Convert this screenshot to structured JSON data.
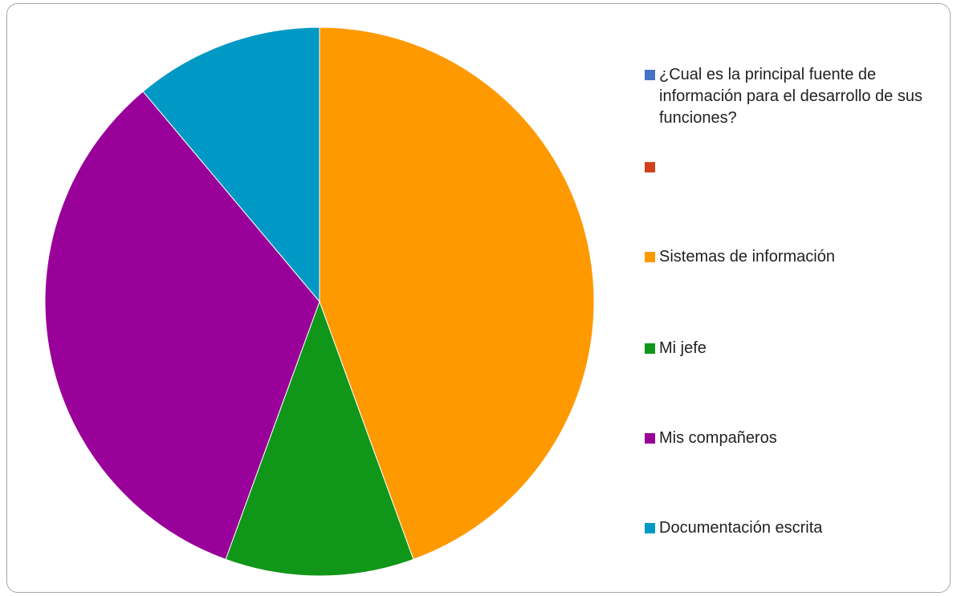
{
  "chart_data": {
    "type": "pie",
    "categories": [
      "¿Cual es la principal fuente de información para el desarrollo de sus funciones?",
      null,
      "Sistemas de información",
      "Mi jefe",
      "Mis compañeros",
      "Documentación escrita"
    ],
    "values": [
      0,
      0,
      4,
      1,
      3,
      1
    ],
    "colors": [
      "#4472c4",
      "#d4401e",
      "#ff9900",
      "#109618",
      "#990099",
      "#0099c6"
    ],
    "legend": "right"
  }
}
